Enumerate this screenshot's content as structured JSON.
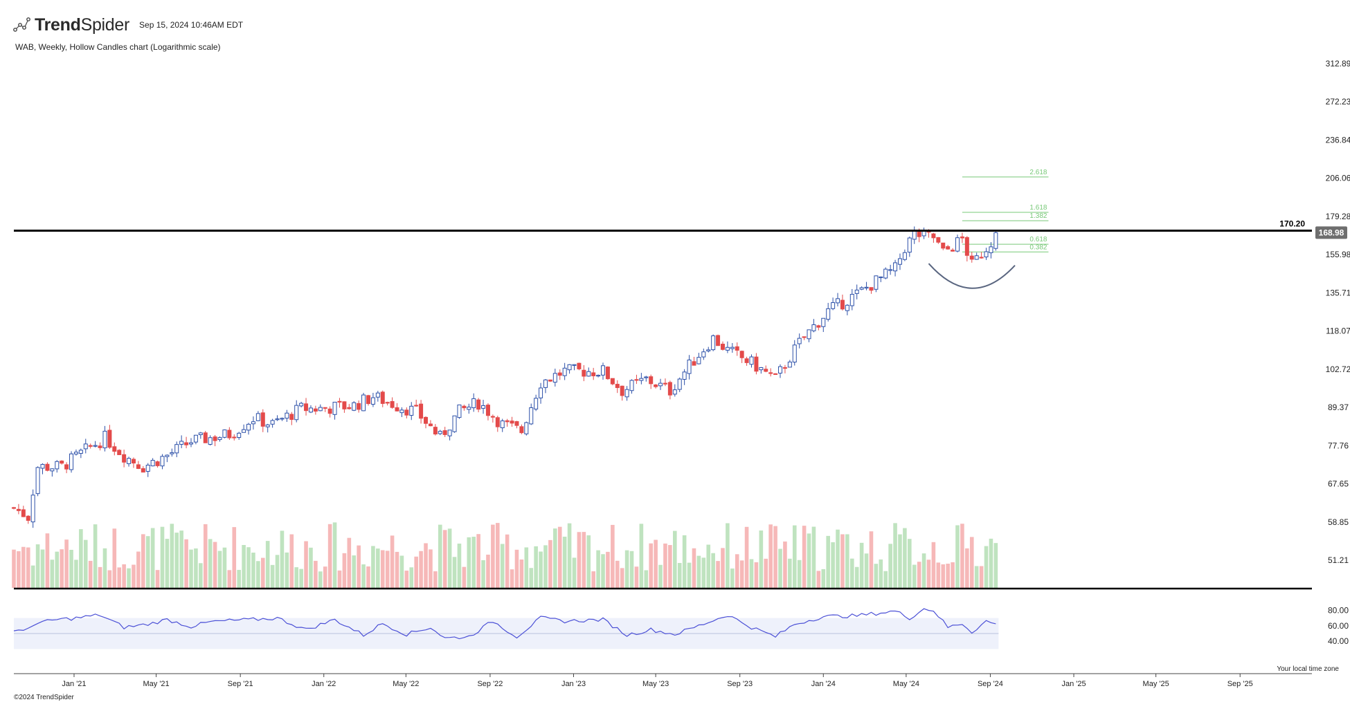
{
  "header": {
    "brand_bold": "Trend",
    "brand_rest": "Spider",
    "timestamp": "Sep 15, 2024 10:46AM EDT",
    "subtitle": "WAB, Weekly, Hollow Candles chart (Logarithmic scale)"
  },
  "footer": {
    "copyright": "©2024 TrendSpider",
    "timezone_note": "Your local time zone"
  },
  "colors": {
    "up": "#2b4fa8",
    "down": "#e34a4a",
    "vol_up": "#bfe3bf",
    "vol_down": "#f6b8b8",
    "fib": "#77c877",
    "rsi_line": "#4a4fd6",
    "rsi_band": "#eef1fb",
    "price_badge": "#6e6e6e",
    "resistance": "#000000",
    "arc": "#5a6680"
  },
  "chart_data": {
    "type": "candlestick",
    "symbol": "WAB",
    "interval": "Weekly",
    "scale": "log",
    "price_axis_ticks": [
      312.89,
      272.23,
      236.84,
      206.06,
      179.28,
      155.98,
      135.71,
      118.07,
      102.72,
      89.37,
      77.76,
      67.65,
      58.85,
      51.21
    ],
    "rsi_axis_ticks": [
      80.0,
      60.0,
      40.0
    ],
    "x_ticks": [
      "Jan '21",
      "May '21",
      "Sep '21",
      "Jan '22",
      "May '22",
      "Sep '22",
      "Jan '23",
      "May '23",
      "Sep '23",
      "Jan '24",
      "May '24",
      "Sep '24",
      "Jan '25",
      "May '25",
      "Sep '25"
    ],
    "x_tick_dates": [
      "2021-01-01",
      "2021-05-01",
      "2021-09-01",
      "2022-01-01",
      "2022-05-01",
      "2022-09-01",
      "2023-01-01",
      "2023-05-01",
      "2023-09-01",
      "2024-01-01",
      "2024-05-01",
      "2024-09-01",
      "2025-01-01",
      "2025-05-01",
      "2025-09-01"
    ],
    "date_range": [
      "2020-10-05",
      "2025-12-15"
    ],
    "resistance": {
      "label": "170.20",
      "value": 170.2
    },
    "last_price": {
      "label": "168.98",
      "value": 168.98
    },
    "fibonacci": {
      "start_date": "2024-07-22",
      "end_date": "2024-11-25",
      "levels": [
        {
          "label": "2.618",
          "value": 207
        },
        {
          "label": "1.618",
          "value": 182
        },
        {
          "label": "1.382",
          "value": 176.5
        },
        {
          "label": "0.618",
          "value": 162
        },
        {
          "label": "0.382",
          "value": 157.5
        }
      ]
    },
    "rounded_bottom": {
      "start": [
        "2024-06-03",
        151
      ],
      "mid": [
        "2024-08-05",
        138
      ],
      "end": [
        "2024-10-07",
        150
      ]
    },
    "price_anchors": [
      [
        "2020-10-05",
        62
      ],
      [
        "2020-10-26",
        60
      ],
      [
        "2020-11-09",
        72
      ],
      [
        "2020-12-14",
        72
      ],
      [
        "2021-02-15",
        80
      ],
      [
        "2021-03-15",
        75
      ],
      [
        "2021-04-12",
        72
      ],
      [
        "2021-05-17",
        75
      ],
      [
        "2021-06-21",
        79
      ],
      [
        "2021-07-19",
        80
      ],
      [
        "2021-08-16",
        81
      ],
      [
        "2021-09-20",
        86
      ],
      [
        "2021-10-18",
        84
      ],
      [
        "2021-11-29",
        89
      ],
      [
        "2021-12-27",
        89
      ],
      [
        "2022-02-14",
        90
      ],
      [
        "2022-03-14",
        93
      ],
      [
        "2022-04-18",
        90
      ],
      [
        "2022-05-16",
        88
      ],
      [
        "2022-06-20",
        80
      ],
      [
        "2022-07-18",
        88
      ],
      [
        "2022-08-15",
        91
      ],
      [
        "2022-09-19",
        84
      ],
      [
        "2022-10-17",
        82
      ],
      [
        "2022-11-14",
        98
      ],
      [
        "2022-12-19",
        102
      ],
      [
        "2023-02-13",
        102
      ],
      [
        "2023-03-13",
        95
      ],
      [
        "2023-04-17",
        99
      ],
      [
        "2023-05-22",
        95
      ],
      [
        "2023-06-19",
        104
      ],
      [
        "2023-07-24",
        115
      ],
      [
        "2023-08-14",
        110
      ],
      [
        "2023-09-18",
        105
      ],
      [
        "2023-10-23",
        99
      ],
      [
        "2023-11-27",
        113
      ],
      [
        "2024-01-08",
        127
      ],
      [
        "2024-02-19",
        135
      ],
      [
        "2024-04-15",
        148
      ],
      [
        "2024-04-29",
        160
      ],
      [
        "2024-05-13",
        168
      ],
      [
        "2024-06-10",
        166
      ],
      [
        "2024-06-24",
        157
      ],
      [
        "2024-07-22",
        165
      ],
      [
        "2024-08-05",
        150
      ],
      [
        "2024-08-26",
        160
      ],
      [
        "2024-09-09",
        167
      ]
    ],
    "rsi_anchors": [
      [
        "2020-10-05",
        55
      ],
      [
        "2020-10-19",
        52
      ],
      [
        "2020-11-02",
        62
      ],
      [
        "2020-12-07",
        68
      ],
      [
        "2021-01-04",
        70
      ],
      [
        "2021-02-08",
        74
      ],
      [
        "2021-03-15",
        58
      ],
      [
        "2021-04-19",
        62
      ],
      [
        "2021-05-17",
        68
      ],
      [
        "2021-06-21",
        59
      ],
      [
        "2021-07-19",
        65
      ],
      [
        "2021-08-23",
        67
      ],
      [
        "2021-09-20",
        68
      ],
      [
        "2021-10-25",
        70
      ],
      [
        "2021-12-06",
        55
      ],
      [
        "2022-01-17",
        68
      ],
      [
        "2022-02-28",
        48
      ],
      [
        "2022-03-28",
        63
      ],
      [
        "2022-05-02",
        49
      ],
      [
        "2022-06-06",
        58
      ],
      [
        "2022-06-27",
        44
      ],
      [
        "2022-08-01",
        46
      ],
      [
        "2022-09-05",
        66
      ],
      [
        "2022-10-10",
        46
      ],
      [
        "2022-11-14",
        70
      ],
      [
        "2022-12-19",
        66
      ],
      [
        "2023-02-13",
        68
      ],
      [
        "2023-03-20",
        48
      ],
      [
        "2023-04-24",
        55
      ],
      [
        "2023-05-29",
        49
      ],
      [
        "2023-07-03",
        60
      ],
      [
        "2023-08-14",
        74
      ],
      [
        "2023-09-18",
        58
      ],
      [
        "2023-10-23",
        46
      ],
      [
        "2023-11-20",
        62
      ],
      [
        "2024-01-01",
        72
      ],
      [
        "2024-02-19",
        73
      ],
      [
        "2024-04-15",
        79
      ],
      [
        "2024-05-06",
        70
      ],
      [
        "2024-05-27",
        82
      ],
      [
        "2024-06-10",
        80
      ],
      [
        "2024-07-01",
        58
      ],
      [
        "2024-07-22",
        63
      ],
      [
        "2024-08-05",
        52
      ],
      [
        "2024-08-26",
        66
      ],
      [
        "2024-09-09",
        62
      ]
    ]
  }
}
